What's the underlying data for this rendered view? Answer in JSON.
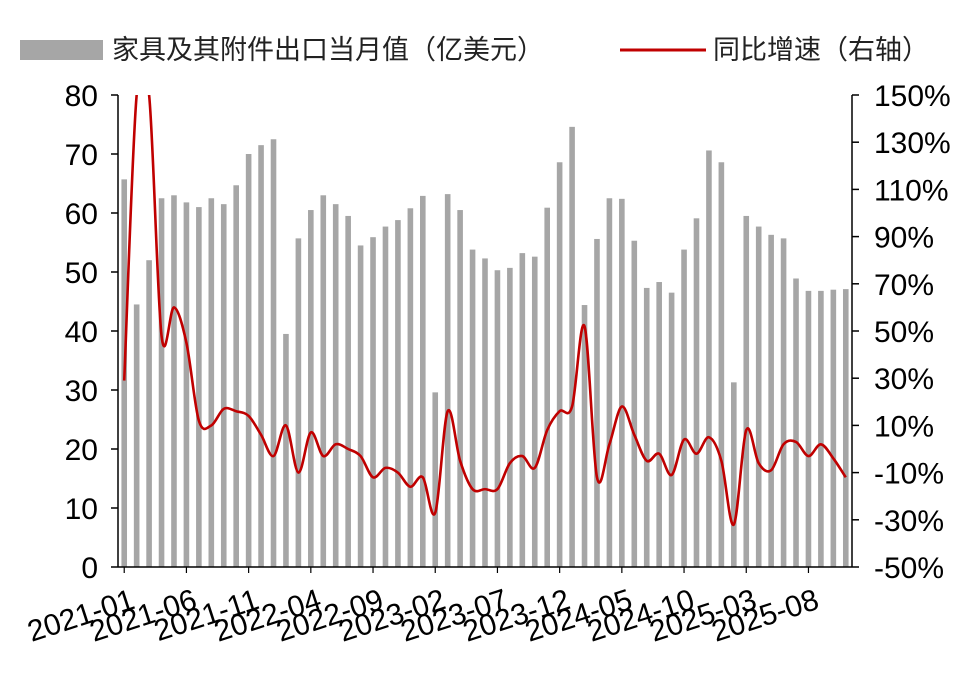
{
  "chart_data": {
    "type": "bar+line",
    "legend": {
      "position": "top",
      "bar_label": "家具及其附件出口当月值（亿美元）",
      "line_label": "同比增速（右轴）"
    },
    "colors": {
      "bar": "#a6a6a6",
      "line": "#c00000",
      "axis": "#000000"
    },
    "y_left": {
      "min": 0,
      "max": 80,
      "ticks": [
        "0",
        "10",
        "20",
        "30",
        "40",
        "50",
        "60",
        "70",
        "80"
      ]
    },
    "y_right": {
      "min": -50,
      "max": 150,
      "ticks": [
        "-50%",
        "-30%",
        "-10%",
        "10%",
        "30%",
        "50%",
        "70%",
        "90%",
        "110%",
        "130%",
        "150%"
      ]
    },
    "x_tick_labels": [
      "2021-01",
      "2021-06",
      "2021-11",
      "2022-04",
      "2022-09",
      "2023-02",
      "2023-07",
      "2023-12",
      "2024-05",
      "2024-10",
      "2025-03",
      "2025-08"
    ],
    "x_tick_every": 5,
    "months": [
      "2021-01",
      "2021-02",
      "2021-03",
      "2021-04",
      "2021-05",
      "2021-06",
      "2021-07",
      "2021-08",
      "2021-09",
      "2021-10",
      "2021-11",
      "2021-12",
      "2022-01",
      "2022-02",
      "2022-03",
      "2022-04",
      "2022-05",
      "2022-06",
      "2022-07",
      "2022-08",
      "2022-09",
      "2022-10",
      "2022-11",
      "2022-12",
      "2023-01",
      "2023-02",
      "2023-03",
      "2023-04",
      "2023-05",
      "2023-06",
      "2023-07",
      "2023-08",
      "2023-09",
      "2023-10",
      "2023-11",
      "2023-12",
      "2024-01",
      "2024-02",
      "2024-03",
      "2024-04",
      "2024-05",
      "2024-06",
      "2024-07",
      "2024-08",
      "2024-09",
      "2024-10",
      "2024-11",
      "2024-12",
      "2025-01",
      "2025-02",
      "2025-03",
      "2025-04",
      "2025-05",
      "2025-06",
      "2025-07",
      "2025-08",
      "2025-09",
      "2025-10",
      "2025-11"
    ],
    "series": [
      {
        "name": "家具及其附件出口当月值（亿美元）",
        "type": "bar",
        "axis": "left",
        "values": [
          65.7,
          44.5,
          52.0,
          62.5,
          63.0,
          61.8,
          61.0,
          62.5,
          61.5,
          64.7,
          70.0,
          71.5,
          72.5,
          39.5,
          55.7,
          60.5,
          63.0,
          61.5,
          59.5,
          54.5,
          55.9,
          57.7,
          58.8,
          60.8,
          62.9,
          29.6,
          63.2,
          60.5,
          53.8,
          52.3,
          50.3,
          50.7,
          53.2,
          52.6,
          60.9,
          68.6,
          74.6,
          44.4,
          55.6,
          62.5,
          62.4,
          55.3,
          47.3,
          48.3,
          46.5,
          53.8,
          59.1,
          70.6,
          68.6,
          31.3,
          59.5,
          57.7,
          56.3,
          55.7,
          48.9,
          46.8,
          46.8,
          47.0,
          47.1
        ]
      },
      {
        "name": "同比增速（右轴）",
        "type": "line",
        "axis": "right",
        "values": [
          29.0,
          150.0,
          150.0,
          48.0,
          60.0,
          45.0,
          12.0,
          10.0,
          17.0,
          16.0,
          14.0,
          6.0,
          -3.0,
          10.0,
          -10.0,
          7.0,
          -3.0,
          2.0,
          0.0,
          -3.0,
          -12.0,
          -8.0,
          -10.0,
          -16.0,
          -12.0,
          -27.0,
          16.0,
          -5.0,
          -17.0,
          -17.0,
          -17.0,
          -6.0,
          -3.0,
          -8.0,
          8.0,
          16.0,
          18.0,
          52.0,
          -12.0,
          2.0,
          18.0,
          6.0,
          -5.0,
          -2.0,
          -11.0,
          4.0,
          -2.0,
          5.0,
          -5.0,
          -32.0,
          8.0,
          -6.0,
          -9.0,
          2.0,
          3.0,
          -3.0,
          2.0,
          -4.0,
          -12.0
        ]
      }
    ]
  }
}
